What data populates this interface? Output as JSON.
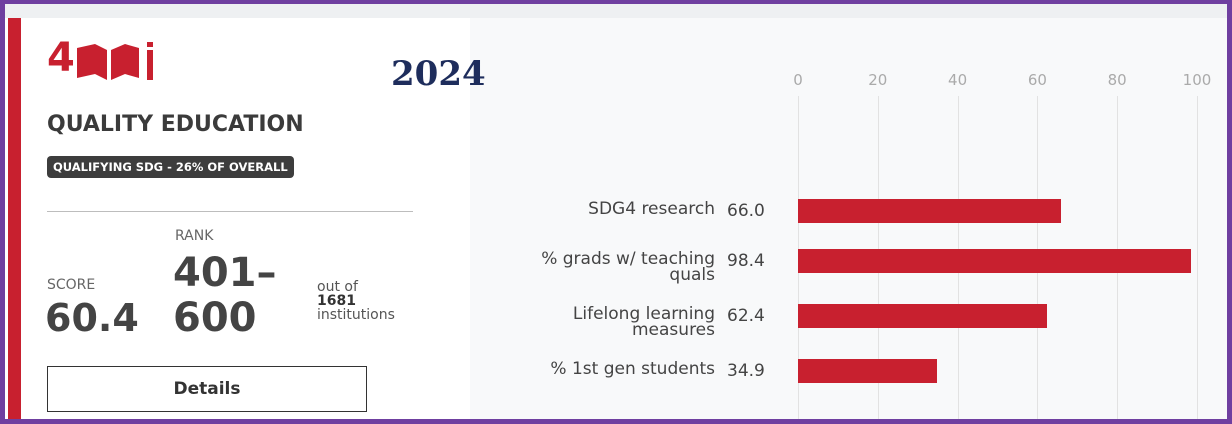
{
  "goal": {
    "number": "4",
    "year": "2024",
    "title": "QUALITY EDUCATION",
    "badge": "QUALIFYING SDG - 26% OF OVERALL"
  },
  "rank": {
    "label": "RANK",
    "value": "401–600"
  },
  "score": {
    "label": "SCORE",
    "value": "60.4"
  },
  "total": {
    "prefix": "out of",
    "count": "1681",
    "unit": "institutions"
  },
  "button": "Details",
  "chart_data": {
    "type": "bar",
    "orientation": "horizontal",
    "categories": [
      "SDG4 research",
      "% grads w/ teaching quals",
      "Lifelong learning measures",
      "% 1st gen students"
    ],
    "values": [
      66.0,
      98.4,
      62.4,
      34.9
    ],
    "value_labels": [
      "66.0",
      "98.4",
      "62.4",
      "34.9"
    ],
    "color": "#c8202f",
    "xlim": [
      0,
      100
    ],
    "xticks": [
      0,
      20,
      40,
      60,
      80,
      100
    ],
    "grid": true
  }
}
